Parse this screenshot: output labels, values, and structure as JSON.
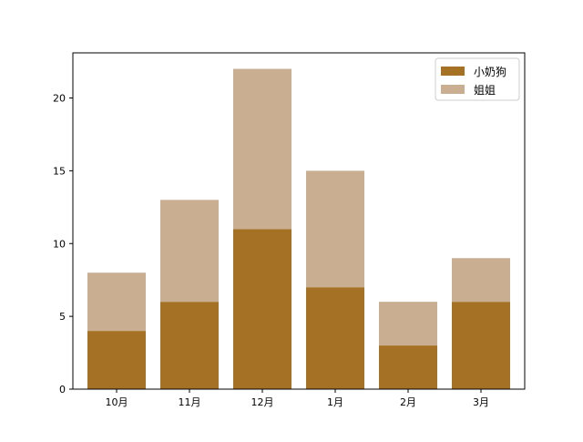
{
  "chart_data": {
    "type": "bar",
    "stacked": true,
    "categories": [
      "10月",
      "11月",
      "12月",
      "1月",
      "2月",
      "3月"
    ],
    "series": [
      {
        "name": "小奶狗",
        "values": [
          4,
          6,
          11,
          7,
          3,
          6
        ],
        "color": "#a57124"
      },
      {
        "name": "姐姐",
        "values": [
          4,
          7,
          11,
          8,
          3,
          3
        ],
        "color": "#c9ae91"
      }
    ],
    "ylim": [
      0,
      23.1
    ],
    "yticks": [
      0,
      5,
      10,
      15,
      20
    ],
    "title": "",
    "xlabel": "",
    "ylabel": "",
    "legend_position": "top-right",
    "grid": false
  }
}
